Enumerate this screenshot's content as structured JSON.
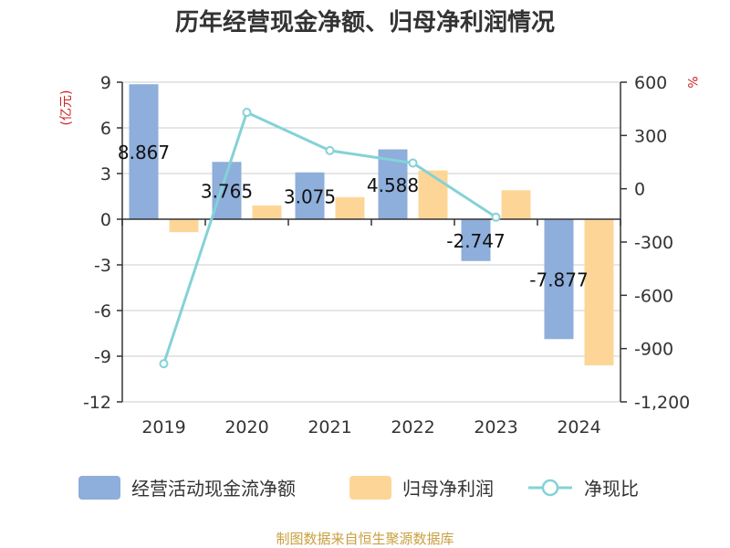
{
  "chart_data": {
    "type": "bar",
    "title": "历年经营现金净额、归母净利润情况",
    "categories": [
      "2019",
      "2020",
      "2021",
      "2022",
      "2023",
      "2024"
    ],
    "left_axis": {
      "unit": "(亿元)",
      "ylim": [
        -12,
        9
      ],
      "ticks": [
        "9",
        "6",
        "3",
        "0",
        "-3",
        "-6",
        "-9",
        "-12"
      ]
    },
    "right_axis": {
      "unit": "%",
      "ylim": [
        -1200,
        600
      ],
      "ticks": [
        "600",
        "300",
        "0",
        "-300",
        "-600",
        "-900",
        "-1,200"
      ]
    },
    "series": [
      {
        "name": "经营活动现金流净额",
        "type": "bar",
        "axis": "left",
        "color": "#8eaedb",
        "values": [
          8.867,
          3.765,
          3.075,
          4.588,
          -2.747,
          -7.877
        ],
        "labels": [
          "8.867",
          "3.765",
          "3.075",
          "4.588",
          "-2.747",
          "-7.877"
        ]
      },
      {
        "name": "归母净利润",
        "type": "bar",
        "axis": "left",
        "color": "#fdd697",
        "values": [
          -0.85,
          0.9,
          1.45,
          3.2,
          1.9,
          -9.6
        ]
      },
      {
        "name": "净现比",
        "type": "line",
        "axis": "right",
        "color": "#84d2d8",
        "values": [
          -985,
          430,
          215,
          145,
          -160,
          null
        ]
      }
    ],
    "grid": true,
    "legend_position": "bottom"
  },
  "source": "制图数据来自恒生聚源数据库",
  "colors": {
    "unit": "#cc2222",
    "source": "#c8a040",
    "axis": "#333333",
    "grid": "#cccccc"
  }
}
